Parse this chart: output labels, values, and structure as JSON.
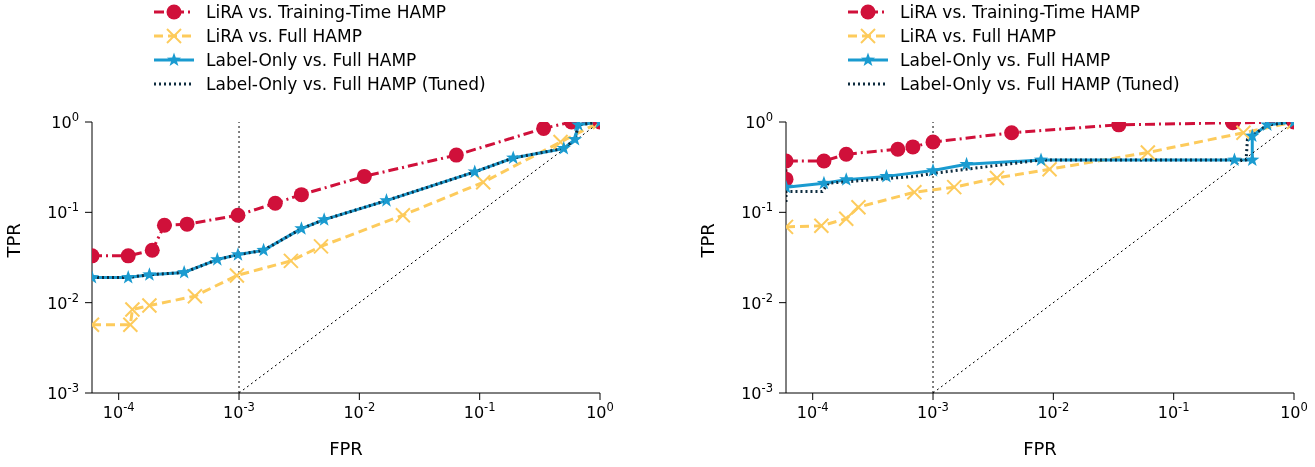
{
  "chart_data": [
    {
      "type": "line",
      "xlabel": "FPR",
      "ylabel": "TPR",
      "log": "xy",
      "legend": "top",
      "xlim": [
        6e-05,
        1
      ],
      "ylim": [
        0.001,
        1
      ],
      "xticks": [
        {
          "value": 0.0001,
          "label": "10$^{-4}$"
        },
        {
          "value": 0.001,
          "label": "10$^{-3}$"
        },
        {
          "value": 0.01,
          "label": "10$^{-2}$"
        },
        {
          "value": 0.1,
          "label": "10$^{-1}$"
        },
        {
          "value": 1,
          "label": "10$^{0}$"
        }
      ],
      "yticks": [
        {
          "value": 0.001,
          "label": "10$^{-3}$"
        },
        {
          "value": 0.01,
          "label": "10$^{-2}$"
        },
        {
          "value": 0.1,
          "label": "10$^{-1}$"
        },
        {
          "value": 1,
          "label": "10$^{0}$"
        }
      ],
      "ref_lines": [
        {
          "axis": "x",
          "value": 0.001,
          "color": "#000000",
          "line_style": "dotted"
        }
      ],
      "series": [
        {
          "name": "LiRA vs. Training-Time HAMP",
          "color": "#d0103a",
          "marker": "circle",
          "line_style": "dashdot",
          "x": [
            6e-05,
            0.00012,
            0.00019,
            0.00024,
            0.00037,
            0.00098,
            0.002,
            0.0033,
            0.011,
            0.064,
            0.34,
            0.58,
            1
          ],
          "values": [
            0.033,
            0.033,
            0.038,
            0.072,
            0.074,
            0.093,
            0.126,
            0.157,
            0.25,
            0.43,
            0.85,
            1.0,
            1.0
          ]
        },
        {
          "name": "LiRA vs. Full HAMP",
          "color": "#fdcb5c",
          "marker": "cross",
          "line_style": "dashed",
          "x": [
            6e-05,
            0.000125,
            0.00013,
            0.00018,
            0.00043,
            0.00096,
            0.0027,
            0.0048,
            0.023,
            0.107,
            0.47,
            1
          ],
          "values": [
            0.0057,
            0.0057,
            0.0084,
            0.0093,
            0.0118,
            0.02,
            0.029,
            0.042,
            0.093,
            0.215,
            0.6,
            1.0
          ]
        },
        {
          "name": "Label-Only vs. Full HAMP",
          "color": "#1a9bd0",
          "marker": "star",
          "line_style": "solid",
          "x": [
            6e-05,
            0.00012,
            0.00018,
            0.00035,
            0.00066,
            0.00098,
            0.0016,
            0.0033,
            0.0051,
            0.0168,
            0.091,
            0.19,
            0.5,
            0.62,
            0.66,
            1
          ],
          "values": [
            0.019,
            0.019,
            0.0204,
            0.0216,
            0.03,
            0.034,
            0.038,
            0.066,
            0.083,
            0.135,
            0.28,
            0.4,
            0.51,
            0.64,
            0.93,
            1.0
          ]
        },
        {
          "name": "Label-Only vs. Full HAMP (Tuned)",
          "color": "#0d2b3e",
          "marker": "none",
          "line_style": "dotted",
          "x": [
            6e-05,
            0.00012,
            0.00018,
            0.00035,
            0.00066,
            0.00098,
            0.0016,
            0.0033,
            0.0051,
            0.0168,
            0.091,
            0.19,
            0.5,
            0.62,
            0.66,
            1
          ],
          "values": [
            0.019,
            0.019,
            0.0204,
            0.0216,
            0.03,
            0.034,
            0.038,
            0.066,
            0.083,
            0.135,
            0.28,
            0.4,
            0.51,
            0.64,
            0.93,
            1.0
          ]
        },
        {
          "type": "line",
          "color": "#000000",
          "marker": "none",
          "line_style": "dotted",
          "x": [
            0.001,
            1
          ],
          "values": [
            0.001,
            1
          ]
        }
      ]
    },
    {
      "type": "line",
      "xlabel": "FPR",
      "ylabel": "TPR",
      "log": "xy",
      "legend": "top",
      "xlim": [
        6e-05,
        1
      ],
      "ylim": [
        0.001,
        1
      ],
      "xticks": [
        {
          "value": 0.0001,
          "label": "10$^{-4}$"
        },
        {
          "value": 0.001,
          "label": "10$^{-3}$"
        },
        {
          "value": 0.01,
          "label": "10$^{-2}$"
        },
        {
          "value": 0.1,
          "label": "10$^{-1}$"
        },
        {
          "value": 1,
          "label": "10$^{0}$"
        }
      ],
      "yticks": [
        {
          "value": 0.001,
          "label": "10$^{-3}$"
        },
        {
          "value": 0.01,
          "label": "10$^{-2}$"
        },
        {
          "value": 0.1,
          "label": "10$^{-1}$"
        },
        {
          "value": 1,
          "label": "10$^{0}$"
        }
      ],
      "ref_lines": [
        {
          "axis": "x",
          "value": 0.001,
          "color": "#000000",
          "line_style": "dotted"
        }
      ],
      "series": [
        {
          "name": "LiRA vs. Training-Time HAMP",
          "color": "#d0103a",
          "marker": "circle",
          "line_style": "dashdot",
          "x": [
            6e-05,
            6e-05,
            0.000124,
            0.00019,
            0.00051,
            0.00068,
            0.001,
            0.0045,
            0.035,
            0.31,
            1
          ],
          "values": [
            0.233,
            0.37,
            0.37,
            0.44,
            0.5,
            0.53,
            0.6,
            0.76,
            0.93,
            0.98,
            1.0
          ]
        },
        {
          "name": "LiRA vs. Full HAMP",
          "color": "#fdcb5c",
          "marker": "cross",
          "line_style": "dashed",
          "x": [
            6e-05,
            0.000118,
            0.00019,
            0.00024,
            0.0007,
            0.0015,
            0.0034,
            0.0093,
            0.061,
            0.38,
            1
          ],
          "values": [
            0.069,
            0.071,
            0.085,
            0.114,
            0.167,
            0.19,
            0.24,
            0.3,
            0.46,
            0.76,
            1.0
          ]
        },
        {
          "name": "Label-Only vs. Full HAMP",
          "color": "#1a9bd0",
          "marker": "star",
          "line_style": "solid",
          "x": [
            6e-05,
            0.000124,
            0.00019,
            0.00041,
            0.001,
            0.0019,
            0.0079,
            0.32,
            0.45,
            0.45,
            0.6,
            1
          ],
          "values": [
            0.19,
            0.21,
            0.23,
            0.25,
            0.29,
            0.34,
            0.38,
            0.38,
            0.38,
            0.7,
            0.93,
            1.0
          ]
        },
        {
          "name": "Label-Only vs. Full HAMP (Tuned)",
          "color": "#0d2b3e",
          "marker": "none",
          "line_style": "dotted",
          "x": [
            6e-05,
            6e-05,
            0.00012,
            0.000135,
            0.0007,
            0.001,
            0.0079,
            0.4,
            0.41,
            0.6,
            1
          ],
          "values": [
            0.13,
            0.17,
            0.17,
            0.21,
            0.25,
            0.27,
            0.38,
            0.38,
            0.64,
            0.93,
            1.0
          ]
        },
        {
          "type": "line",
          "color": "#000000",
          "marker": "none",
          "line_style": "dotted",
          "x": [
            0.001,
            1
          ],
          "values": [
            0.001,
            1
          ]
        }
      ]
    }
  ]
}
